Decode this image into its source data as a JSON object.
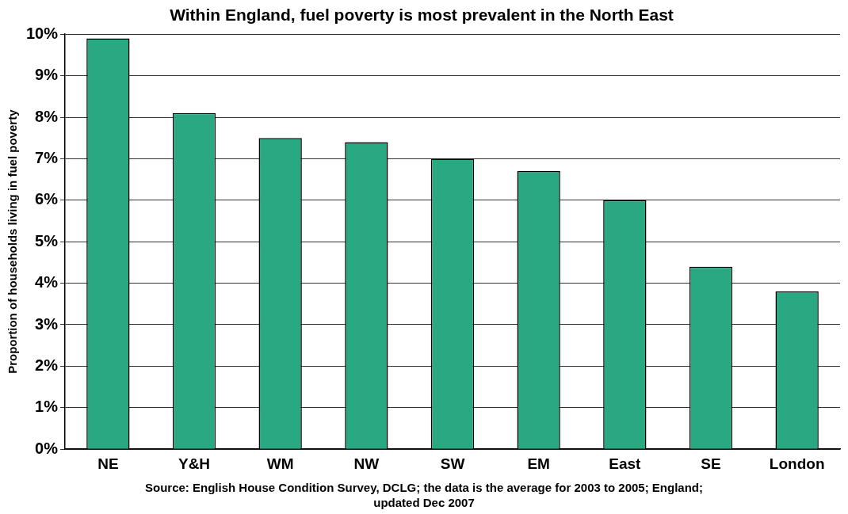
{
  "chart_data": {
    "type": "bar",
    "title": "Within England, fuel poverty is most prevalent in the North East",
    "ylabel": "Proportion of households living in fuel poverty",
    "categories": [
      "NE",
      "Y&H",
      "WM",
      "NW",
      "SW",
      "EM",
      "East",
      "SE",
      "London"
    ],
    "values": [
      9.9,
      8.1,
      7.5,
      7.4,
      7.0,
      6.7,
      6.0,
      4.4,
      3.8
    ],
    "color": "#2aa882",
    "ylim": [
      0,
      10
    ],
    "yticks": [
      {
        "value": 0,
        "label": "0%"
      },
      {
        "value": 1,
        "label": "1%"
      },
      {
        "value": 2,
        "label": "2%"
      },
      {
        "value": 3,
        "label": "3%"
      },
      {
        "value": 4,
        "label": "4%"
      },
      {
        "value": 5,
        "label": "5%"
      },
      {
        "value": 6,
        "label": "6%"
      },
      {
        "value": 7,
        "label": "7%"
      },
      {
        "value": 8,
        "label": "8%"
      },
      {
        "value": 9,
        "label": "9%"
      },
      {
        "value": 10,
        "label": "10%"
      }
    ],
    "grid": "y",
    "legend": false,
    "annotations": [
      "Source: English House Condition Survey, DCLG; the data is the average for 2003 to 2005; England; updated Dec 2007"
    ]
  }
}
